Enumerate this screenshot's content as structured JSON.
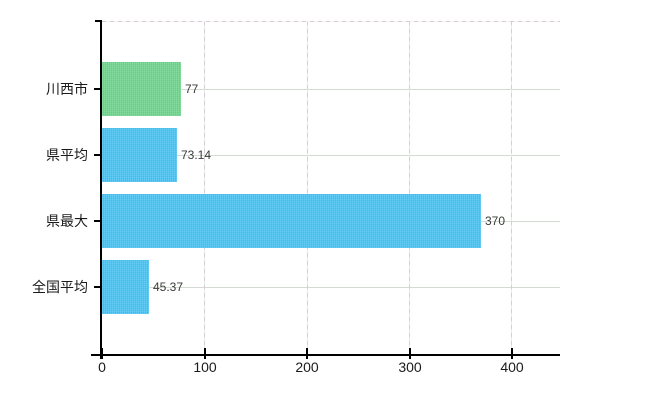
{
  "chart": {
    "title": "",
    "background_color": "#ffffff"
  },
  "chart_data": {
    "type": "bar",
    "orientation": "horizontal",
    "title": "",
    "xlabel": "",
    "ylabel": "",
    "categories": [
      "川西市",
      "県平均",
      "県最大",
      "全国平均"
    ],
    "values": [
      77,
      73.14,
      370,
      45.37
    ],
    "value_labels": [
      "77",
      "73.14",
      "370",
      "45.37"
    ],
    "bar_colors": [
      "#63cf82",
      "#3abdf1",
      "#3abdf1",
      "#3abdf1"
    ],
    "x_ticks": [
      0,
      100,
      200,
      300,
      400
    ],
    "x_tick_labels": [
      "0",
      "100",
      "200",
      "300",
      "400"
    ],
    "xlim": [
      0,
      447
    ],
    "grid": true,
    "legend_position": "none"
  },
  "colors": {
    "axis": "#000000",
    "grid_solid": "#d3dbd3",
    "grid_dashed_a": "#d6cbd6",
    "grid_dashed_b": "#e3ece3",
    "label_text": "#1b1b1b",
    "value_text": "#3a3a3a",
    "bar_green": "#63cf82",
    "bar_blue": "#3abdf1"
  }
}
